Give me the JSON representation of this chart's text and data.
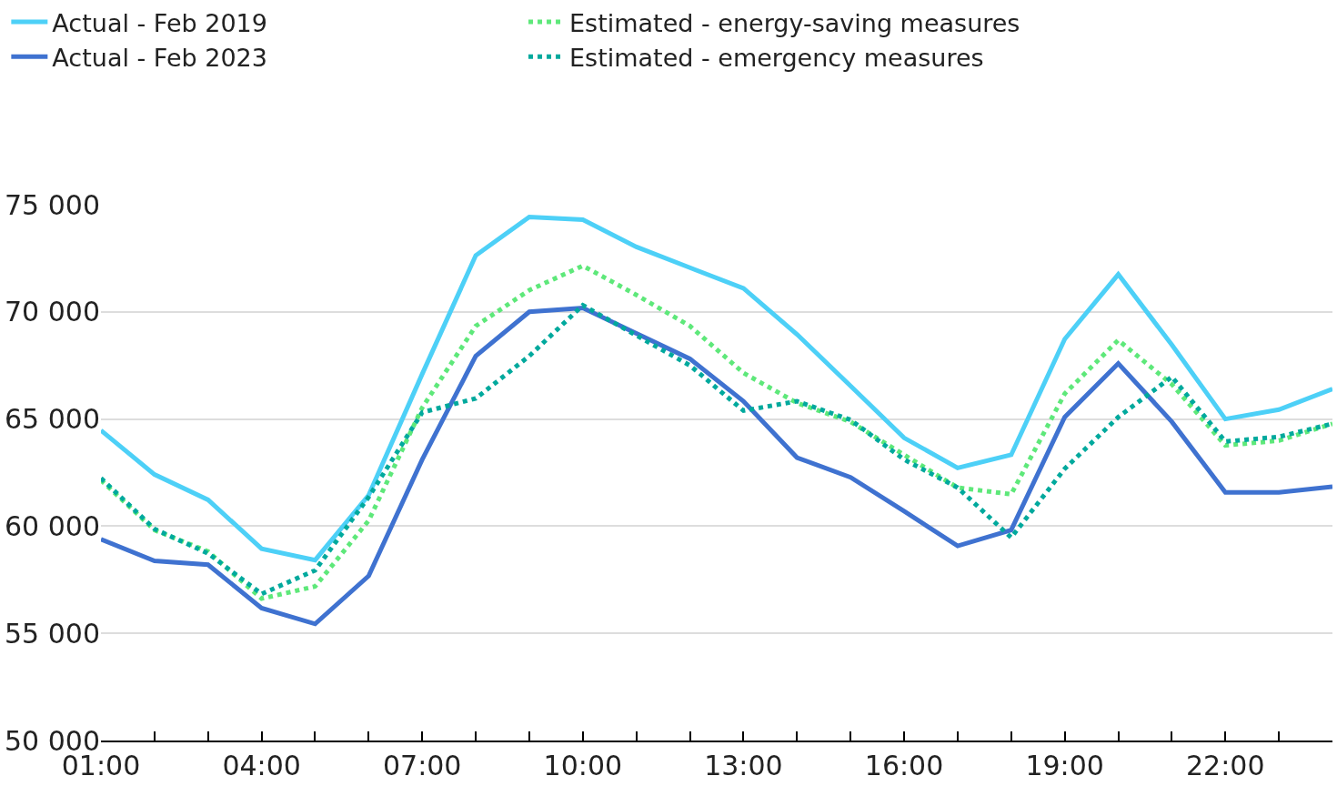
{
  "chart_data": {
    "type": "line",
    "x": [
      1,
      2,
      3,
      4,
      5,
      6,
      7,
      8,
      9,
      10,
      11,
      12,
      13,
      14,
      15,
      16,
      17,
      18,
      19,
      20,
      21,
      22,
      23,
      24
    ],
    "series": [
      {
        "name": "Actual - Feb 2019",
        "color": "#4dd0f7",
        "line_style": "solid",
        "values": [
          64470,
          62410,
          61230,
          58950,
          58420,
          61450,
          67100,
          72630,
          74430,
          74300,
          73030,
          72060,
          71100,
          68950,
          66540,
          64120,
          62720,
          63330,
          68730,
          71750,
          68460,
          65000,
          65440,
          66400
        ]
      },
      {
        "name": "Estimated - energy-saving measures",
        "color": "#5ee87a",
        "line_style": "dotted",
        "values": [
          62150,
          59820,
          58820,
          56620,
          57190,
          60260,
          65530,
          69340,
          71010,
          72150,
          70790,
          69340,
          67150,
          65750,
          64870,
          63330,
          61800,
          61490,
          66180,
          68680,
          66620,
          63770,
          63990,
          64780
        ]
      },
      {
        "name": "Actual - Feb 2023",
        "color": "#3f72d0",
        "line_style": "solid",
        "values": [
          59390,
          58380,
          58200,
          56180,
          55440,
          57680,
          63110,
          67940,
          70000,
          70180,
          68990,
          67810,
          65830,
          63200,
          62280,
          60700,
          59080,
          59820,
          65090,
          67590,
          64870,
          61580,
          61580,
          61840
        ]
      },
      {
        "name": "Estimated - emergency measures",
        "color": "#00a99d",
        "line_style": "dotted",
        "values": [
          62240,
          59870,
          58730,
          56840,
          57940,
          61360,
          65310,
          65960,
          67940,
          70310,
          68900,
          67500,
          65390,
          65830,
          64960,
          63110,
          61800,
          59470,
          62680,
          65090,
          66970,
          63950,
          64170,
          64780
        ]
      }
    ],
    "xlim": [
      1,
      24
    ],
    "xticks": [
      {
        "value": 1,
        "label": "01:00"
      },
      {
        "value": 2,
        "label": null
      },
      {
        "value": 3,
        "label": null
      },
      {
        "value": 4,
        "label": "04:00"
      },
      {
        "value": 5,
        "label": null
      },
      {
        "value": 6,
        "label": null
      },
      {
        "value": 7,
        "label": "07:00"
      },
      {
        "value": 8,
        "label": null
      },
      {
        "value": 9,
        "label": null
      },
      {
        "value": 10,
        "label": "10:00"
      },
      {
        "value": 11,
        "label": null
      },
      {
        "value": 12,
        "label": null
      },
      {
        "value": 13,
        "label": "13:00"
      },
      {
        "value": 14,
        "label": null
      },
      {
        "value": 15,
        "label": null
      },
      {
        "value": 16,
        "label": "16:00"
      },
      {
        "value": 17,
        "label": null
      },
      {
        "value": 18,
        "label": null
      },
      {
        "value": 19,
        "label": "19:00"
      },
      {
        "value": 20,
        "label": null
      },
      {
        "value": 21,
        "label": null
      },
      {
        "value": 22,
        "label": "22:00"
      },
      {
        "value": 23,
        "label": null
      },
      {
        "value": 24,
        "label": null
      }
    ],
    "ylim": [
      50000,
      75000
    ],
    "yticks": [
      {
        "value": 50000,
        "label": "50 000"
      },
      {
        "value": 55000,
        "label": "55 000"
      },
      {
        "value": 60000,
        "label": "60 000"
      },
      {
        "value": 65000,
        "label": "65 000"
      },
      {
        "value": 70000,
        "label": "70 000"
      },
      {
        "value": 75000,
        "label": "75 000"
      }
    ],
    "grid": "y",
    "legend": "top left",
    "marker": "none"
  }
}
